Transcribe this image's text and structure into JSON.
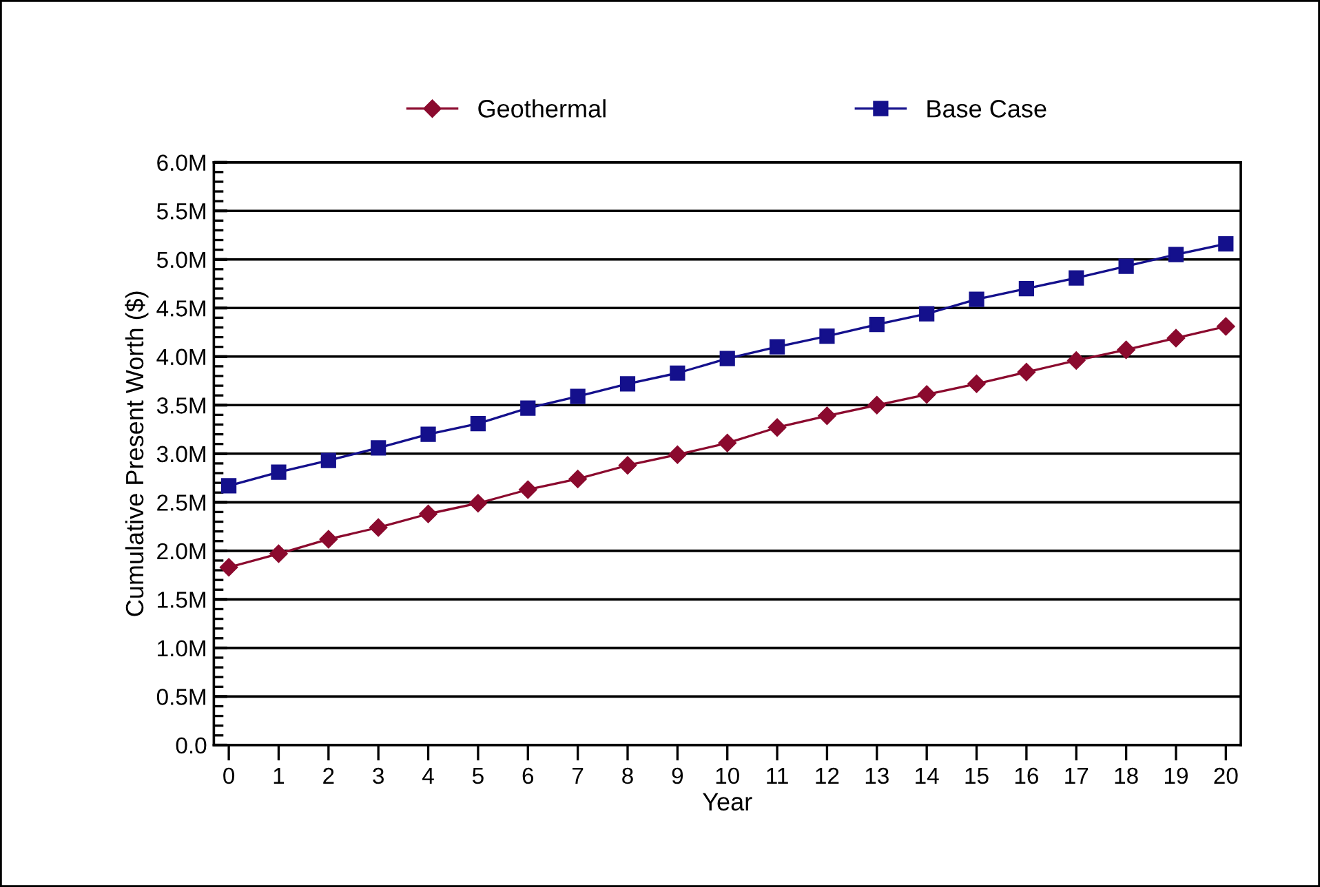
{
  "chart_data": {
    "type": "line",
    "xlabel": "Year",
    "ylabel": "Cumulative Present Worth ($)",
    "x": [
      0,
      1,
      2,
      3,
      4,
      5,
      6,
      7,
      8,
      9,
      10,
      11,
      12,
      13,
      14,
      15,
      16,
      17,
      18,
      19,
      20
    ],
    "series": [
      {
        "name": "Geothermal",
        "color": "#8b0a2e",
        "marker": "diamond",
        "values": [
          1.83,
          1.97,
          2.12,
          2.24,
          2.38,
          2.49,
          2.63,
          2.74,
          2.88,
          2.99,
          3.11,
          3.27,
          3.39,
          3.5,
          3.61,
          3.72,
          3.84,
          3.96,
          4.07,
          4.19,
          4.31
        ]
      },
      {
        "name": "Base Case",
        "color": "#14108c",
        "marker": "square",
        "values": [
          2.67,
          2.81,
          2.93,
          3.06,
          3.2,
          3.31,
          3.47,
          3.59,
          3.72,
          3.83,
          3.98,
          4.1,
          4.21,
          4.33,
          4.44,
          4.59,
          4.7,
          4.81,
          4.93,
          5.05,
          5.16
        ]
      }
    ],
    "xlim": [
      -0.3,
      20.3
    ],
    "xticks": [
      0,
      1,
      2,
      3,
      4,
      5,
      6,
      7,
      8,
      9,
      10,
      11,
      12,
      13,
      14,
      15,
      16,
      17,
      18,
      19,
      20
    ],
    "ylim": [
      0,
      6
    ],
    "yticks": [
      {
        "value": 0,
        "label": "0.0"
      },
      {
        "value": 0.5,
        "label": "0.5M"
      },
      {
        "value": 1,
        "label": "1.0M"
      },
      {
        "value": 1.5,
        "label": "1.5M"
      },
      {
        "value": 2,
        "label": "2.0M"
      },
      {
        "value": 2.5,
        "label": "2.5M"
      },
      {
        "value": 3,
        "label": "3.0M"
      },
      {
        "value": 3.5,
        "label": "3.5M"
      },
      {
        "value": 4,
        "label": "4.0M"
      },
      {
        "value": 4.5,
        "label": "4.5M"
      },
      {
        "value": 5,
        "label": "5.0M"
      },
      {
        "value": 5.5,
        "label": "5.5M"
      },
      {
        "value": 6,
        "label": "6.0M"
      }
    ],
    "grid": "y",
    "legend": "top",
    "line_style": "solid"
  }
}
